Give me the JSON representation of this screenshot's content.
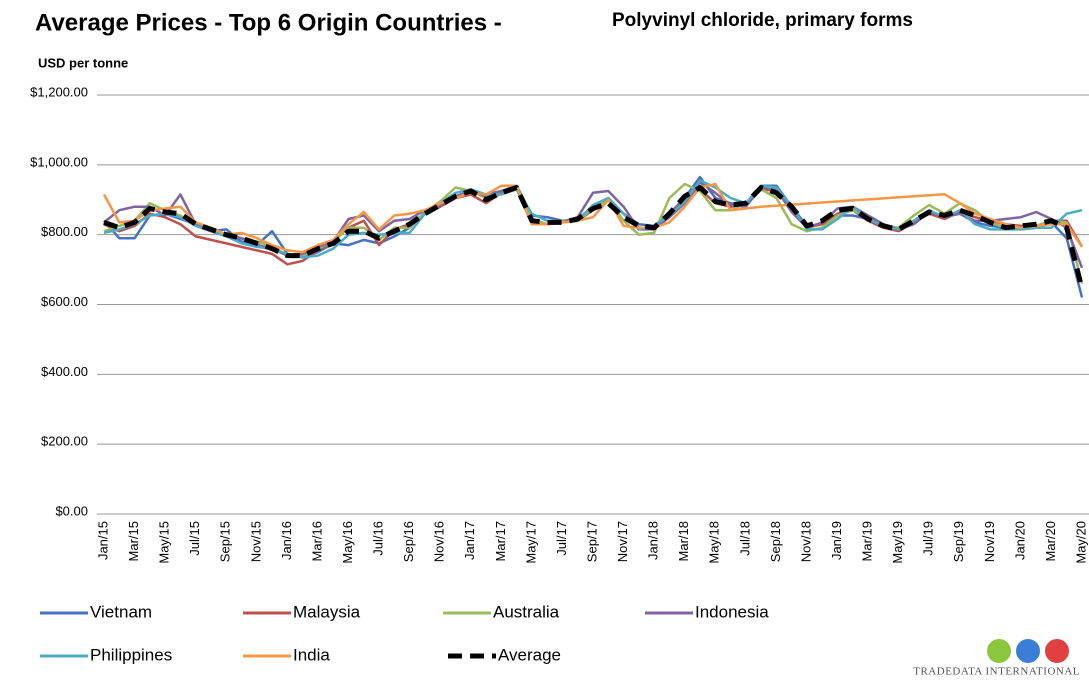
{
  "chart_data": {
    "type": "line",
    "title": "Average Prices - Top 6 Origin Countries -",
    "subtitle": "Polyvinyl chloride, primary forms",
    "y_label": "USD per tonne",
    "logo_text": "TRADEDATA INTERNATIONAL",
    "categories": [
      "Jan/15",
      null,
      "Mar/15",
      null,
      "May/15",
      null,
      "Jul/15",
      null,
      "Sep/15",
      null,
      "Nov/15",
      null,
      "Jan/16",
      null,
      "Mar/16",
      null,
      "May/16",
      null,
      "Jul/16",
      null,
      "Sep/16",
      null,
      "Nov/16",
      null,
      "Jan/17",
      null,
      "Mar/17",
      null,
      "May/17",
      null,
      "Jul/17",
      null,
      "Sep/17",
      null,
      "Nov/17",
      null,
      "Jan/18",
      null,
      "Mar/18",
      null,
      "May/18",
      null,
      "Jul/18",
      null,
      "Sep/18",
      null,
      "Nov/18",
      null,
      "Jan/19",
      null,
      "Mar/19",
      null,
      "May/19",
      null,
      "Jul/19",
      null,
      "Sep/19",
      null,
      "Nov/19",
      null,
      "Jan/20",
      null,
      "Mar/20",
      null,
      "May/20"
    ],
    "ylim": [
      0,
      1200
    ],
    "yticks": [
      {
        "value": 0,
        "label": "$0.00"
      },
      {
        "value": 200,
        "label": "$200.00"
      },
      {
        "value": 400,
        "label": "$400.00"
      },
      {
        "value": 600,
        "label": "$600.00"
      },
      {
        "value": 800,
        "label": "$800.00"
      },
      {
        "value": 1000,
        "label": "$1,000.00"
      },
      {
        "value": 1200,
        "label": "$1,200.00"
      }
    ],
    "grid": true,
    "legend": "bottom",
    "series": [
      {
        "name": "Vietnam",
        "color": "#4472c4",
        "values": [
          840,
          790,
          790,
          855,
          860,
          845,
          830,
          810,
          815,
          780,
          770,
          810,
          745,
          735,
          750,
          775,
          770,
          785,
          775,
          795,
          820,
          865,
          890,
          910,
          925,
          915,
          925,
          940,
          855,
          850,
          840,
          845,
          880,
          905,
          860,
          830,
          825,
          860,
          905,
          965,
          905,
          890,
          880,
          940,
          940,
          880,
          825,
          830,
          855,
          855,
          845,
          830,
          815,
          835,
          860,
          855,
          860,
          835,
          825,
          820,
          815,
          820,
          835,
          790,
          620
        ]
      },
      {
        "name": "Malaysia",
        "color": "#c0504d",
        "values": [
          830,
          810,
          825,
          860,
          850,
          830,
          795,
          785,
          775,
          765,
          755,
          745,
          715,
          725,
          755,
          780,
          820,
          840,
          770,
          815,
          830,
          860,
          880,
          905,
          915,
          890,
          920,
          935,
          830,
          830,
          835,
          840,
          870,
          900,
          860,
          820,
          815,
          850,
          905,
          930,
          890,
          880,
          885,
          930,
          925,
          870,
          820,
          830,
          860,
          870,
          840,
          820,
          810,
          835,
          860,
          845,
          865,
          850,
          840,
          830,
          825,
          825,
          840,
          840,
          765
        ]
      },
      {
        "name": "Australia",
        "color": "#9bbb59",
        "values": [
          810,
          825,
          840,
          890,
          870,
          855,
          825,
          815,
          800,
          790,
          780,
          765,
          740,
          740,
          760,
          780,
          820,
          820,
          785,
          820,
          820,
          865,
          895,
          935,
          925,
          905,
          925,
          930,
          845,
          830,
          840,
          840,
          875,
          900,
          840,
          800,
          805,
          905,
          945,
          925,
          870,
          870,
          890,
          930,
          905,
          830,
          810,
          820,
          855,
          870,
          850,
          825,
          820,
          855,
          885,
          860,
          890,
          870,
          835,
          820,
          820,
          825,
          840,
          835,
          660
        ]
      },
      {
        "name": "Indonesia",
        "color": "#8064a2",
        "values": [
          835,
          870,
          880,
          880,
          855,
          915,
          830,
          810,
          800,
          790,
          770,
          760,
          740,
          745,
          765,
          780,
          845,
          855,
          810,
          840,
          845,
          870,
          885,
          910,
          925,
          910,
          925,
          935,
          830,
          830,
          835,
          850,
          920,
          925,
          880,
          815,
          815,
          850,
          890,
          950,
          920,
          885,
          880,
          935,
          930,
          865,
          820,
          835,
          875,
          880,
          855,
          830,
          815,
          830,
          865,
          850,
          860,
          840,
          840,
          845,
          850,
          865,
          845,
          820,
          705
        ]
      },
      {
        "name": "Philippines",
        "color": "#4bacc6",
        "values": [
          805,
          815,
          830,
          855,
          860,
          850,
          825,
          810,
          795,
          775,
          765,
          760,
          745,
          735,
          740,
          760,
          800,
          805,
          800,
          805,
          805,
          860,
          890,
          920,
          930,
          915,
          915,
          930,
          860,
          840,
          835,
          840,
          885,
          905,
          860,
          815,
          825,
          855,
          895,
          955,
          935,
          905,
          890,
          940,
          935,
          880,
          815,
          815,
          845,
          880,
          845,
          825,
          815,
          840,
          870,
          850,
          870,
          830,
          815,
          815,
          815,
          820,
          820,
          860,
          870
        ]
      },
      {
        "name": "India",
        "color": "#f79646",
        "values": [
          915,
          835,
          840,
          870,
          875,
          880,
          835,
          820,
          800,
          805,
          790,
          770,
          755,
          750,
          770,
          785,
          830,
          865,
          815,
          855,
          860,
          870,
          890,
          905,
          920,
          915,
          940,
          940,
          830,
          830,
          835,
          840,
          850,
          900,
          825,
          820,
          820,
          835,
          880,
          935,
          945,
          870,
          875,
          880,
          883,
          886,
          889,
          892,
          895,
          898,
          901,
          904,
          907,
          910,
          913,
          916,
          890,
          860,
          845,
          830,
          820,
          825,
          830,
          830,
          765
        ]
      },
      {
        "name": "Average",
        "color": "#000000",
        "dashed": true,
        "values": [
          835,
          820,
          835,
          875,
          865,
          860,
          830,
          815,
          800,
          790,
          775,
          760,
          740,
          740,
          760,
          775,
          810,
          810,
          790,
          810,
          830,
          860,
          885,
          910,
          925,
          900,
          920,
          935,
          840,
          835,
          835,
          845,
          875,
          890,
          850,
          825,
          820,
          860,
          910,
          935,
          895,
          885,
          890,
          935,
          920,
          880,
          825,
          840,
          870,
          875,
          845,
          825,
          815,
          840,
          865,
          855,
          870,
          855,
          835,
          820,
          825,
          830,
          840,
          820,
          645
        ]
      }
    ]
  }
}
